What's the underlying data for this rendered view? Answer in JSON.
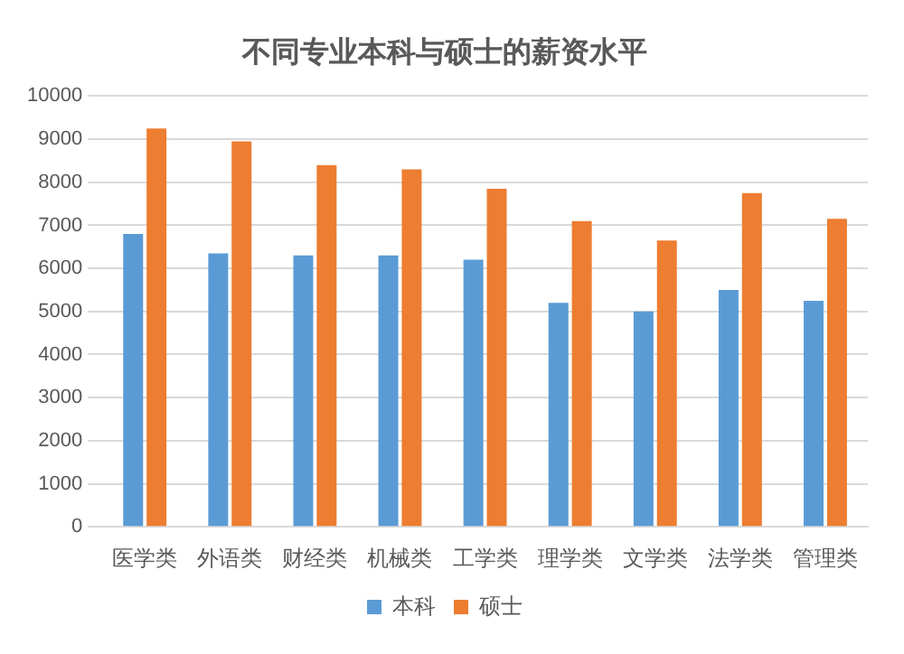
{
  "chart_data": {
    "type": "bar",
    "title": "不同专业本科与硕士的薪资水平",
    "categories": [
      "医学类",
      "外语类",
      "财经类",
      "机械类",
      "工学类",
      "理学类",
      "文学类",
      "法学类",
      "管理类"
    ],
    "series": [
      {
        "name": "本科",
        "color": "#5b9bd5",
        "values": [
          6800,
          6350,
          6300,
          6300,
          6200,
          5200,
          5000,
          5500,
          5250
        ]
      },
      {
        "name": "硕士",
        "color": "#ed7d31",
        "values": [
          9250,
          8950,
          8400,
          8300,
          7850,
          7100,
          6650,
          7750,
          7150
        ]
      }
    ],
    "ylim": [
      0,
      10000
    ],
    "yticks": [
      0,
      1000,
      2000,
      3000,
      4000,
      5000,
      6000,
      7000,
      8000,
      9000,
      10000
    ],
    "grid": "y",
    "legend": "bottom"
  }
}
